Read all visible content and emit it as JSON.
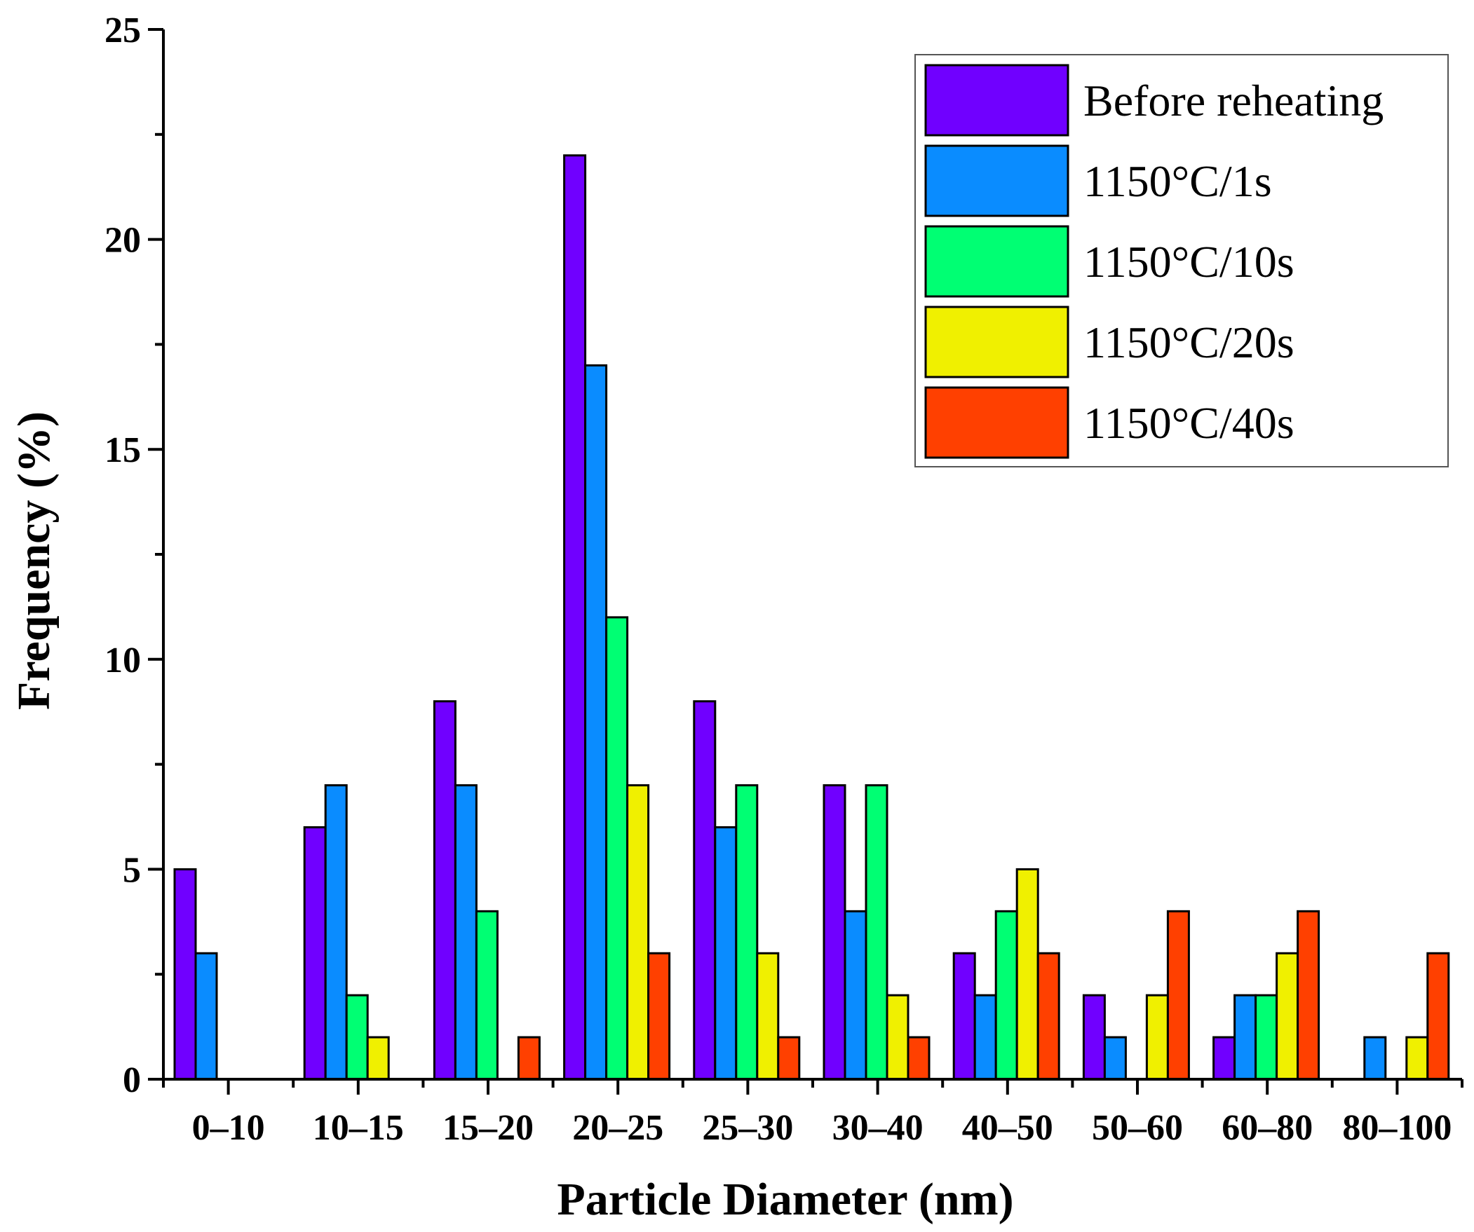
{
  "chart_data": {
    "type": "bar",
    "title": "",
    "xlabel": "Particle Diameter (nm)",
    "ylabel": "Frequency (%)",
    "ylim": [
      0,
      25
    ],
    "yticks": [
      0,
      5,
      10,
      15,
      20,
      25
    ],
    "ytick_labels": [
      "0",
      "5",
      "10",
      "15",
      "20",
      "25"
    ],
    "grid": false,
    "legend_position": "top-right",
    "categories": [
      "0–10",
      "10–15",
      "15–20",
      "20–25",
      "25–30",
      "30–40",
      "40–50",
      "50–60",
      "60–80",
      "80–100"
    ],
    "series": [
      {
        "name": "Before reheating",
        "color": "#7000FF",
        "values": [
          5,
          6,
          9,
          22,
          9,
          7,
          3,
          2,
          1,
          0
        ]
      },
      {
        "name": "1150°C/1s",
        "color": "#0A8CFF",
        "values": [
          3,
          7,
          7,
          17,
          6,
          4,
          2,
          1,
          2,
          1
        ]
      },
      {
        "name": "1150°C/10s",
        "color": "#00FF73",
        "values": [
          0,
          2,
          4,
          11,
          7,
          7,
          4,
          0,
          2,
          0
        ]
      },
      {
        "name": "1150°C/20s",
        "color": "#F0F000",
        "values": [
          0,
          1,
          0,
          7,
          3,
          2,
          5,
          2,
          3,
          1
        ]
      },
      {
        "name": "1150°C/40s",
        "color": "#FF4000",
        "values": [
          0,
          0,
          1,
          3,
          1,
          1,
          3,
          4,
          4,
          3
        ]
      }
    ]
  }
}
